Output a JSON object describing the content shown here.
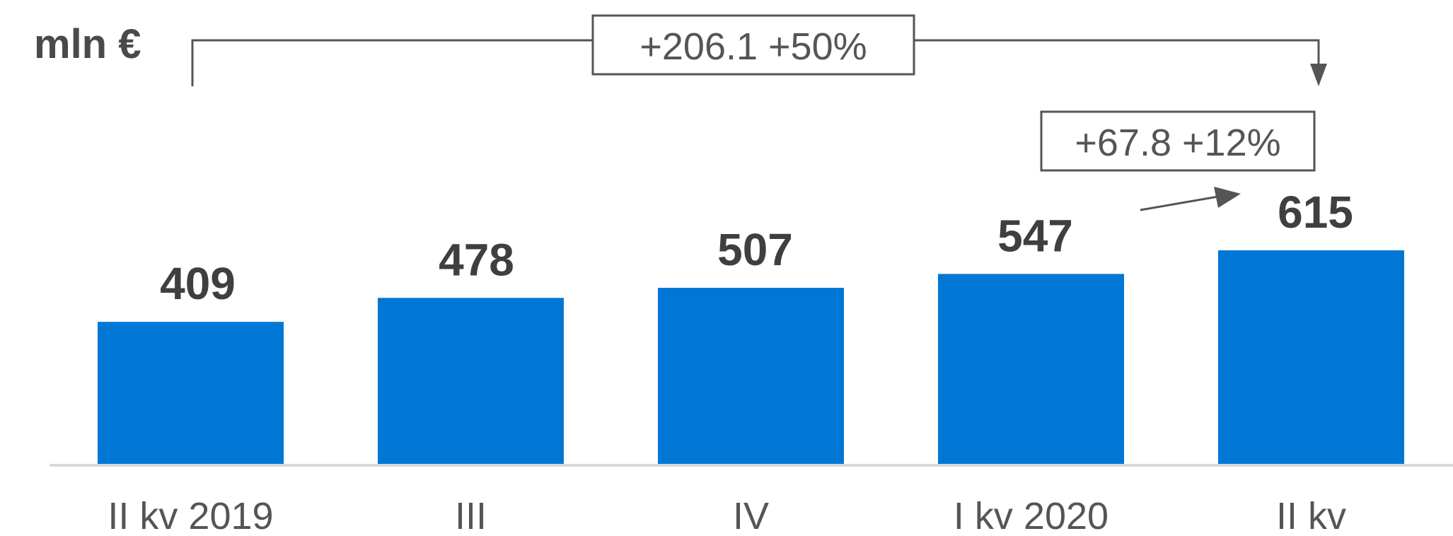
{
  "chart_data": {
    "type": "bar",
    "unit": "mln €",
    "categories": [
      "II kv 2019",
      "III",
      "IV",
      "I kv 2020",
      "II kv"
    ],
    "values": [
      409,
      478,
      507,
      547,
      615
    ],
    "value_labels": [
      "409",
      "478",
      "507",
      "547",
      "615"
    ],
    "ylim": [
      0,
      615
    ],
    "grid": false,
    "legend": "none",
    "annotations": {
      "total_change": "+206.1  +50%",
      "quarter_change": "+67.8 +12%"
    },
    "colors": {
      "bar": "#0077d4",
      "text": "#555555",
      "value_text": "#3f3f3f",
      "baseline": "#d9d9d9",
      "annotation_line": "#555555"
    }
  }
}
